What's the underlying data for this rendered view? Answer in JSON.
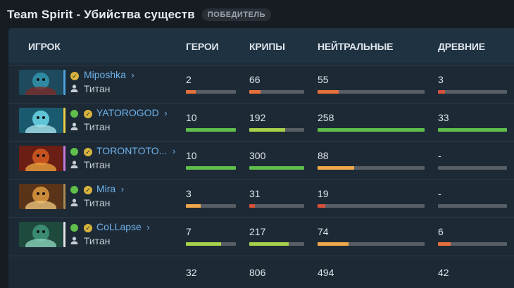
{
  "header": {
    "title": "Team Spirit - Убийства существ",
    "badge": "ПОБЕДИТЕЛЬ"
  },
  "columns": {
    "player": "ИГРОК",
    "heroes": "ГЕРОИ",
    "creeps": "КРИПЫ",
    "neutrals": "НЕЙТРАЛЬНЫЕ",
    "ancients": "ДРЕВНИЕ"
  },
  "colors": {
    "orange": "#e8703a",
    "light_orange": "#f0a84a",
    "yellow_green": "#a8d24a",
    "green": "#5fbf4a",
    "red": "#d9513b",
    "track": "#5a5f66"
  },
  "players": [
    {
      "name": "Miposhka",
      "role": "Титан",
      "online": false,
      "stats": [
        {
          "value": "2",
          "fill": 0.2,
          "color": "#e8703a"
        },
        {
          "value": "66",
          "fill": 0.2,
          "color": "#e8703a"
        },
        {
          "value": "55",
          "fill": 0.2,
          "color": "#e8703a"
        },
        {
          "value": "3",
          "fill": 0.1,
          "color": "#d9513b"
        }
      ]
    },
    {
      "name": "YATOROGOD",
      "role": "Титан",
      "online": true,
      "stats": [
        {
          "value": "10",
          "fill": 1.0,
          "color": "#5fbf4a"
        },
        {
          "value": "192",
          "fill": 0.65,
          "color": "#a8d24a"
        },
        {
          "value": "258",
          "fill": 1.0,
          "color": "#5fbf4a"
        },
        {
          "value": "33",
          "fill": 1.0,
          "color": "#5fbf4a"
        }
      ]
    },
    {
      "name": "TORONTOTO...",
      "role": "Титан",
      "online": true,
      "stats": [
        {
          "value": "10",
          "fill": 1.0,
          "color": "#5fbf4a"
        },
        {
          "value": "300",
          "fill": 1.0,
          "color": "#5fbf4a"
        },
        {
          "value": "88",
          "fill": 0.34,
          "color": "#f0a84a"
        },
        {
          "value": "-",
          "fill": 0.0,
          "color": "#5a5f66"
        }
      ]
    },
    {
      "name": "Mira",
      "role": "Титан",
      "online": true,
      "stats": [
        {
          "value": "3",
          "fill": 0.3,
          "color": "#f0a84a"
        },
        {
          "value": "31",
          "fill": 0.1,
          "color": "#d9513b"
        },
        {
          "value": "19",
          "fill": 0.07,
          "color": "#d9513b"
        },
        {
          "value": "-",
          "fill": 0.0,
          "color": "#5a5f66"
        }
      ]
    },
    {
      "name": "CoLLapse",
      "role": "Титан",
      "online": true,
      "stats": [
        {
          "value": "7",
          "fill": 0.7,
          "color": "#a8d24a"
        },
        {
          "value": "217",
          "fill": 0.72,
          "color": "#a8d24a"
        },
        {
          "value": "74",
          "fill": 0.29,
          "color": "#f0a84a"
        },
        {
          "value": "6",
          "fill": 0.18,
          "color": "#e8703a"
        }
      ]
    }
  ],
  "totals": {
    "heroes": "32",
    "creeps": "806",
    "neutrals": "494",
    "ancients": "42"
  }
}
